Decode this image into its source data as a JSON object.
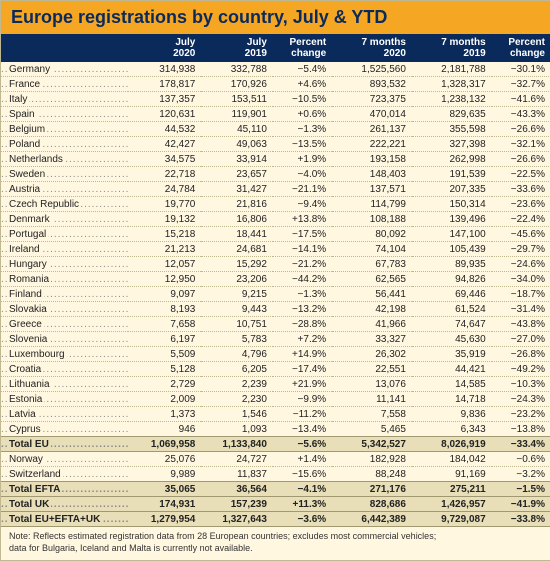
{
  "title": "Europe registrations by country, July & YTD",
  "columns": [
    "",
    "July\n2020",
    "July\n2019",
    "Percent\nchange",
    "7 months\n2020",
    "7 months\n2019",
    "Percent\nchange"
  ],
  "rows": [
    {
      "country": "Germany",
      "c": [
        "314,938",
        "332,788",
        "−5.4%",
        "1,525,560",
        "2,181,788",
        "−30.1%"
      ]
    },
    {
      "country": "France",
      "c": [
        "178,817",
        "170,926",
        "+4.6%",
        "893,532",
        "1,328,317",
        "−32.7%"
      ]
    },
    {
      "country": "Italy",
      "c": [
        "137,357",
        "153,511",
        "−10.5%",
        "723,375",
        "1,238,132",
        "−41.6%"
      ]
    },
    {
      "country": "Spain",
      "c": [
        "120,631",
        "119,901",
        "+0.6%",
        "470,014",
        "829,635",
        "−43.3%"
      ]
    },
    {
      "country": "Belgium",
      "c": [
        "44,532",
        "45,110",
        "−1.3%",
        "261,137",
        "355,598",
        "−26.6%"
      ]
    },
    {
      "country": "Poland",
      "c": [
        "42,427",
        "49,063",
        "−13.5%",
        "222,221",
        "327,398",
        "−32.1%"
      ]
    },
    {
      "country": "Netherlands",
      "c": [
        "34,575",
        "33,914",
        "+1.9%",
        "193,158",
        "262,998",
        "−26.6%"
      ]
    },
    {
      "country": "Sweden",
      "c": [
        "22,718",
        "23,657",
        "−4.0%",
        "148,403",
        "191,539",
        "−22.5%"
      ]
    },
    {
      "country": "Austria",
      "c": [
        "24,784",
        "31,427",
        "−21.1%",
        "137,571",
        "207,335",
        "−33.6%"
      ]
    },
    {
      "country": "Czech Republic",
      "c": [
        "19,770",
        "21,816",
        "−9.4%",
        "114,799",
        "150,314",
        "−23.6%"
      ]
    },
    {
      "country": "Denmark",
      "c": [
        "19,132",
        "16,806",
        "+13.8%",
        "108,188",
        "139,496",
        "−22.4%"
      ]
    },
    {
      "country": "Portugal",
      "c": [
        "15,218",
        "18,441",
        "−17.5%",
        "80,092",
        "147,100",
        "−45.6%"
      ]
    },
    {
      "country": "Ireland",
      "c": [
        "21,213",
        "24,681",
        "−14.1%",
        "74,104",
        "105,439",
        "−29.7%"
      ]
    },
    {
      "country": "Hungary",
      "c": [
        "12,057",
        "15,292",
        "−21.2%",
        "67,783",
        "89,935",
        "−24.6%"
      ]
    },
    {
      "country": "Romania",
      "c": [
        "12,950",
        "23,206",
        "−44.2%",
        "62,565",
        "94,826",
        "−34.0%"
      ]
    },
    {
      "country": "Finland",
      "c": [
        "9,097",
        "9,215",
        "−1.3%",
        "56,441",
        "69,446",
        "−18.7%"
      ]
    },
    {
      "country": "Slovakia",
      "c": [
        "8,193",
        "9,443",
        "−13.2%",
        "42,198",
        "61,524",
        "−31.4%"
      ]
    },
    {
      "country": "Greece",
      "c": [
        "7,658",
        "10,751",
        "−28.8%",
        "41,966",
        "74,647",
        "−43.8%"
      ]
    },
    {
      "country": "Slovenia",
      "c": [
        "6,197",
        "5,783",
        "+7.2%",
        "33,327",
        "45,630",
        "−27.0%"
      ]
    },
    {
      "country": "Luxembourg",
      "c": [
        "5,509",
        "4,796",
        "+14.9%",
        "26,302",
        "35,919",
        "−26.8%"
      ]
    },
    {
      "country": "Croatia",
      "c": [
        "5,128",
        "6,205",
        "−17.4%",
        "22,551",
        "44,421",
        "−49.2%"
      ]
    },
    {
      "country": "Lithuania",
      "c": [
        "2,729",
        "2,239",
        "+21.9%",
        "13,076",
        "14,585",
        "−10.3%"
      ]
    },
    {
      "country": "Estonia",
      "c": [
        "2,009",
        "2,230",
        "−9.9%",
        "11,141",
        "14,718",
        "−24.3%"
      ]
    },
    {
      "country": "Latvia",
      "c": [
        "1,373",
        "1,546",
        "−11.2%",
        "7,558",
        "9,836",
        "−23.2%"
      ]
    },
    {
      "country": "Cyprus",
      "c": [
        "946",
        "1,093",
        "−13.4%",
        "5,465",
        "6,343",
        "−13.8%"
      ]
    }
  ],
  "totals": [
    {
      "label": "Total EU",
      "c": [
        "1,069,958",
        "1,133,840",
        "−5.6%",
        "5,342,527",
        "8,026,919",
        "−33.4%"
      ],
      "total": true
    },
    {
      "label": "Norway",
      "c": [
        "25,076",
        "24,727",
        "+1.4%",
        "182,928",
        "184,042",
        "−0.6%"
      ],
      "total": false
    },
    {
      "label": "Switzerland",
      "c": [
        "9,989",
        "11,837",
        "−15.6%",
        "88,248",
        "91,169",
        "−3.2%"
      ],
      "total": false
    },
    {
      "label": "Total EFTA",
      "c": [
        "35,065",
        "36,564",
        "−4.1%",
        "271,176",
        "275,211",
        "−1.5%"
      ],
      "total": true
    },
    {
      "label": "Total UK",
      "c": [
        "174,931",
        "157,239",
        "+11.3%",
        "828,686",
        "1,426,957",
        "−41.9%"
      ],
      "total": true
    },
    {
      "label": "Total EU+EFTA+UK",
      "c": [
        "1,279,954",
        "1,327,643",
        "−3.6%",
        "6,442,389",
        "9,729,087",
        "−33.8%"
      ],
      "total": true
    }
  ],
  "note1": "Note: Reflects estimated registration data from 28 European countries; excludes most commercial vehicles;",
  "note2": "data for Bulgaria, Iceland and Malta is currently not available.",
  "colors": {
    "title_bg": "#f5a623",
    "title_fg": "#0a2a5c",
    "header_bg": "#0a2a5c",
    "header_fg": "#ffffff",
    "body_bg": "#fff7e0",
    "total_bg": "#e8dfb8"
  }
}
